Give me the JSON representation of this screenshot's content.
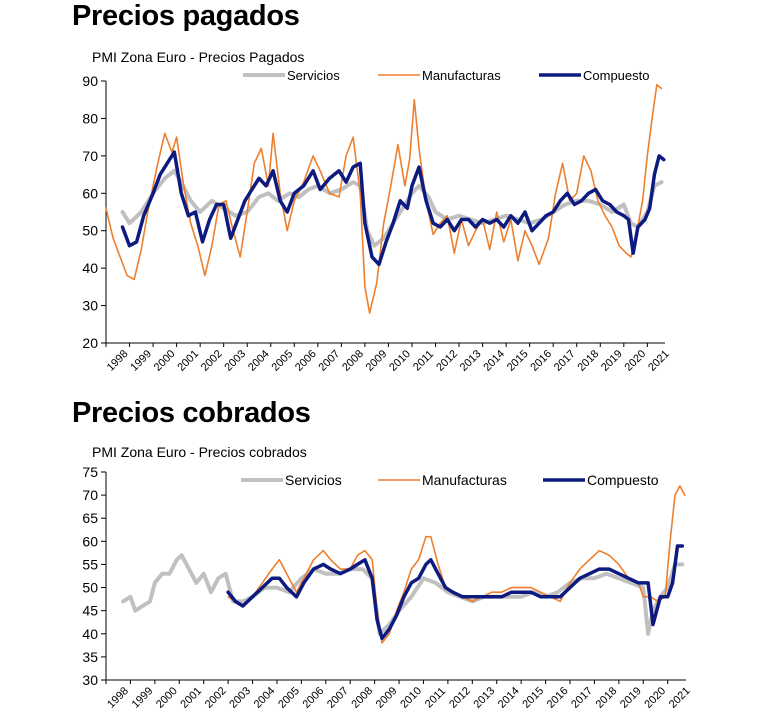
{
  "page": {
    "title_top": "Precios pagados",
    "title_bottom": "Precios cobrados"
  },
  "colors": {
    "servicios": "#c0c0c0",
    "manufacturas": "#ee7f2d",
    "compuesto": "#0d1a80"
  },
  "chart_data": [
    {
      "type": "line",
      "title": "PMI Zona Euro - Precios Pagados",
      "ylim": [
        20,
        90
      ],
      "yticks": [
        20,
        30,
        40,
        50,
        60,
        70,
        80,
        90
      ],
      "xlim": [
        1998,
        2021.75
      ],
      "xticks": [
        "1998",
        "1999",
        "2000",
        "2001",
        "2002",
        "2003",
        "2004",
        "2005",
        "2006",
        "2007",
        "2008",
        "2009",
        "2010",
        "2011",
        "2012",
        "2013",
        "2014",
        "2015",
        "2016",
        "2017",
        "2018",
        "2019",
        "2020",
        "2021"
      ],
      "grid": false,
      "legend": "top",
      "series": [
        {
          "name": "Servicios",
          "x": [
            1998.7,
            1999.0,
            1999.5,
            2000.0,
            2000.5,
            2000.9,
            2001.2,
            2001.6,
            2002.0,
            2002.5,
            2003.0,
            2003.5,
            2004.0,
            2004.5,
            2004.9,
            2005.3,
            2005.8,
            2006.2,
            2006.6,
            2007.0,
            2007.5,
            2008.0,
            2008.5,
            2008.8,
            2009.1,
            2009.4,
            2009.8,
            2010.2,
            2010.6,
            2011.0,
            2011.3,
            2011.7,
            2012.0,
            2012.5,
            2013.0,
            2013.5,
            2014.0,
            2014.5,
            2015.0,
            2015.5,
            2016.0,
            2016.5,
            2017.0,
            2017.5,
            2018.0,
            2018.5,
            2019.0,
            2019.5,
            2020.0,
            2020.3,
            2020.6,
            2021.0,
            2021.3,
            2021.6
          ],
          "values": [
            55,
            52,
            55,
            60,
            64,
            66,
            63,
            58,
            55,
            58,
            56,
            54,
            55,
            59,
            60,
            58,
            60,
            59,
            61,
            62,
            60,
            61,
            63,
            62,
            50,
            46,
            48,
            52,
            56,
            60,
            62,
            59,
            55,
            53,
            54,
            53,
            52,
            53,
            54,
            53,
            52,
            53,
            55,
            57,
            58,
            58,
            57,
            55,
            57,
            52,
            51,
            55,
            62,
            63
          ]
        },
        {
          "name": "Manufacturas",
          "x": [
            1998.0,
            1998.3,
            1998.6,
            1998.9,
            1999.2,
            1999.5,
            1999.8,
            2000.2,
            2000.5,
            2000.8,
            2001.0,
            2001.3,
            2001.6,
            2001.9,
            2002.2,
            2002.5,
            2002.8,
            2003.1,
            2003.4,
            2003.7,
            2004.0,
            2004.3,
            2004.6,
            2004.9,
            2005.1,
            2005.4,
            2005.7,
            2006.0,
            2006.4,
            2006.8,
            2007.1,
            2007.5,
            2007.9,
            2008.2,
            2008.5,
            2008.8,
            2009.0,
            2009.2,
            2009.5,
            2009.8,
            2010.1,
            2010.4,
            2010.7,
            2010.9,
            2011.1,
            2011.3,
            2011.6,
            2011.9,
            2012.2,
            2012.5,
            2012.8,
            2013.1,
            2013.4,
            2013.7,
            2014.0,
            2014.3,
            2014.6,
            2014.9,
            2015.2,
            2015.5,
            2015.8,
            2016.1,
            2016.4,
            2016.8,
            2017.1,
            2017.4,
            2017.7,
            2018.0,
            2018.3,
            2018.6,
            2018.9,
            2019.2,
            2019.5,
            2019.8,
            2020.1,
            2020.3,
            2020.5,
            2020.8,
            2021.0,
            2021.2,
            2021.4,
            2021.6
          ],
          "values": [
            56,
            48,
            43,
            38,
            37,
            45,
            56,
            68,
            76,
            71,
            75,
            62,
            52,
            46,
            38,
            46,
            57,
            58,
            50,
            43,
            55,
            68,
            72,
            62,
            76,
            60,
            50,
            58,
            63,
            70,
            66,
            60,
            59,
            70,
            75,
            60,
            35,
            28,
            36,
            52,
            62,
            73,
            62,
            69,
            85,
            72,
            58,
            49,
            52,
            54,
            44,
            53,
            46,
            50,
            53,
            45,
            55,
            47,
            53,
            42,
            50,
            46,
            41,
            48,
            60,
            68,
            58,
            60,
            70,
            66,
            58,
            54,
            51,
            46,
            44,
            43,
            48,
            58,
            70,
            80,
            89,
            88
          ]
        },
        {
          "name": "Compuesto",
          "x": [
            1998.7,
            1999.0,
            1999.3,
            1999.6,
            2000.0,
            2000.3,
            2000.6,
            2000.9,
            2001.2,
            2001.5,
            2001.8,
            2002.1,
            2002.4,
            2002.7,
            2003.0,
            2003.3,
            2003.6,
            2003.9,
            2004.2,
            2004.5,
            2004.8,
            2005.1,
            2005.4,
            2005.7,
            2006.0,
            2006.4,
            2006.8,
            2007.1,
            2007.5,
            2007.9,
            2008.2,
            2008.5,
            2008.8,
            2009.0,
            2009.3,
            2009.6,
            2009.9,
            2010.2,
            2010.5,
            2010.8,
            2011.0,
            2011.3,
            2011.6,
            2011.9,
            2012.2,
            2012.5,
            2012.8,
            2013.1,
            2013.4,
            2013.7,
            2014.0,
            2014.3,
            2014.6,
            2014.9,
            2015.2,
            2015.5,
            2015.8,
            2016.1,
            2016.4,
            2016.7,
            2017.0,
            2017.3,
            2017.6,
            2017.9,
            2018.2,
            2018.5,
            2018.8,
            2019.1,
            2019.4,
            2019.7,
            2020.0,
            2020.2,
            2020.4,
            2020.6,
            2020.9,
            2021.1,
            2021.3,
            2021.5,
            2021.7
          ],
          "values": [
            51,
            46,
            47,
            54,
            60,
            65,
            68,
            71,
            60,
            54,
            55,
            47,
            53,
            57,
            57,
            48,
            53,
            58,
            61,
            64,
            62,
            66,
            58,
            55,
            60,
            62,
            66,
            61,
            64,
            66,
            63,
            67,
            68,
            52,
            43,
            41,
            47,
            52,
            58,
            56,
            62,
            67,
            58,
            52,
            51,
            53,
            50,
            53,
            53,
            51,
            53,
            52,
            53,
            51,
            54,
            52,
            55,
            50,
            52,
            54,
            55,
            58,
            60,
            57,
            58,
            60,
            61,
            58,
            57,
            55,
            54,
            53,
            44,
            51,
            53,
            56,
            65,
            70,
            69
          ]
        }
      ]
    },
    {
      "type": "line",
      "title": "PMI Zona Euro - Precios cobrados",
      "ylim": [
        30,
        75
      ],
      "yticks": [
        30,
        35,
        40,
        45,
        50,
        55,
        60,
        65,
        70,
        75
      ],
      "xlim": [
        1998,
        2021.75
      ],
      "xticks": [
        "1998",
        "1999",
        "2000",
        "2001",
        "2002",
        "2003",
        "2004",
        "2005",
        "2006",
        "2007",
        "2008",
        "2009",
        "2010",
        "2011",
        "2012",
        "2013",
        "2014",
        "2015",
        "2016",
        "2017",
        "2018",
        "2019",
        "2020",
        "2021"
      ],
      "grid": false,
      "legend": "top",
      "series": [
        {
          "name": "Servicios",
          "x": [
            1998.7,
            1999.0,
            1999.2,
            1999.5,
            1999.8,
            2000.0,
            2000.3,
            2000.6,
            2000.9,
            2001.1,
            2001.4,
            2001.7,
            2002.0,
            2002.3,
            2002.6,
            2002.9,
            2003.2,
            2003.6,
            2004.0,
            2004.5,
            2005.0,
            2005.5,
            2006.0,
            2006.5,
            2007.0,
            2007.5,
            2008.0,
            2008.5,
            2008.9,
            2009.2,
            2009.6,
            2010.0,
            2010.5,
            2011.0,
            2011.5,
            2012.0,
            2012.5,
            2013.0,
            2013.5,
            2014.0,
            2014.5,
            2015.0,
            2015.5,
            2016.0,
            2016.5,
            2017.0,
            2017.5,
            2018.0,
            2018.5,
            2019.0,
            2019.5,
            2020.0,
            2020.2,
            2020.4,
            2020.7,
            2021.0,
            2021.3,
            2021.6
          ],
          "values": [
            47,
            48,
            45,
            46,
            47,
            51,
            53,
            53,
            56,
            57,
            54,
            51,
            53,
            49,
            52,
            53,
            47,
            47,
            48,
            50,
            50,
            49,
            52,
            54,
            53,
            53,
            54,
            54,
            52,
            40,
            42,
            45,
            48,
            52,
            51,
            49,
            48,
            47,
            48,
            48,
            48,
            48,
            49,
            48,
            49,
            51,
            52,
            52,
            53,
            52,
            51,
            50,
            40,
            45,
            48,
            50,
            55,
            55
          ]
        },
        {
          "name": "Manufacturas",
          "x": [
            2003.0,
            2003.3,
            2003.6,
            2004.0,
            2004.4,
            2004.8,
            2005.1,
            2005.4,
            2005.8,
            2006.1,
            2006.5,
            2006.9,
            2007.2,
            2007.6,
            2008.0,
            2008.3,
            2008.6,
            2008.9,
            2009.1,
            2009.3,
            2009.6,
            2009.9,
            2010.2,
            2010.5,
            2010.8,
            2011.1,
            2011.3,
            2011.6,
            2011.9,
            2012.2,
            2012.6,
            2013.0,
            2013.4,
            2013.8,
            2014.2,
            2014.6,
            2015.0,
            2015.4,
            2015.8,
            2016.2,
            2016.6,
            2017.0,
            2017.4,
            2017.8,
            2018.2,
            2018.6,
            2019.0,
            2019.4,
            2019.8,
            2020.0,
            2020.3,
            2020.6,
            2020.9,
            2021.1,
            2021.3,
            2021.5,
            2021.7
          ],
          "values": [
            48,
            47,
            46,
            48,
            51,
            54,
            56,
            53,
            49,
            52,
            56,
            58,
            56,
            54,
            54,
            57,
            58,
            56,
            45,
            38,
            40,
            45,
            49,
            54,
            56,
            61,
            61,
            55,
            50,
            49,
            48,
            47,
            48,
            49,
            49,
            50,
            50,
            50,
            49,
            48,
            47,
            51,
            54,
            56,
            58,
            57,
            55,
            52,
            51,
            48,
            48,
            47,
            48,
            60,
            70,
            72,
            70
          ]
        },
        {
          "name": "Compuesto",
          "x": [
            2003.0,
            2003.3,
            2003.6,
            2004.0,
            2004.4,
            2004.8,
            2005.1,
            2005.4,
            2005.8,
            2006.1,
            2006.5,
            2006.9,
            2007.2,
            2007.6,
            2008.0,
            2008.3,
            2008.6,
            2008.9,
            2009.1,
            2009.3,
            2009.6,
            2009.9,
            2010.2,
            2010.5,
            2010.8,
            2011.1,
            2011.3,
            2011.6,
            2011.9,
            2012.2,
            2012.6,
            2013.0,
            2013.4,
            2013.8,
            2014.2,
            2014.6,
            2015.0,
            2015.4,
            2015.8,
            2016.2,
            2016.6,
            2017.0,
            2017.4,
            2017.8,
            2018.2,
            2018.6,
            2019.0,
            2019.4,
            2019.8,
            2020.0,
            2020.2,
            2020.4,
            2020.7,
            2021.0,
            2021.2,
            2021.4,
            2021.6
          ],
          "values": [
            49,
            47,
            46,
            48,
            50,
            52,
            52,
            50,
            48,
            51,
            54,
            55,
            54,
            53,
            54,
            55,
            56,
            52,
            43,
            39,
            41,
            44,
            48,
            51,
            52,
            55,
            56,
            53,
            50,
            49,
            48,
            48,
            48,
            48,
            48,
            49,
            49,
            49,
            48,
            48,
            48,
            50,
            52,
            53,
            54,
            54,
            53,
            52,
            51,
            51,
            51,
            42,
            48,
            48,
            51,
            59,
            59
          ]
        }
      ]
    }
  ]
}
